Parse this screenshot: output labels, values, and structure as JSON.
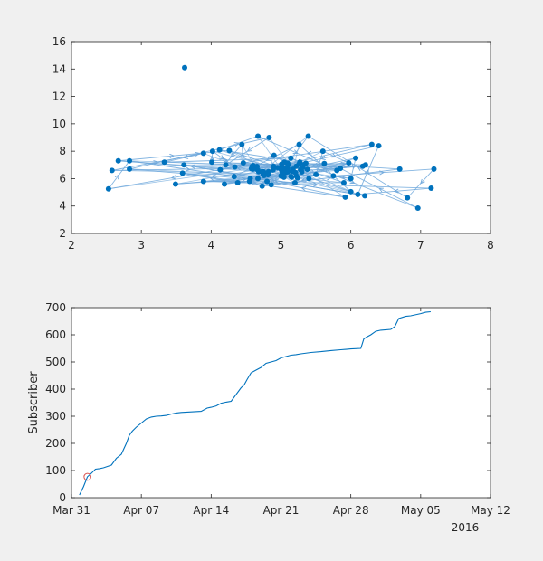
{
  "chart_data": [
    {
      "type": "scatter",
      "title": "",
      "xlabel": "",
      "ylabel": "",
      "xlim": [
        2,
        8
      ],
      "ylim": [
        2,
        16
      ],
      "xticks": [
        2,
        3,
        4,
        5,
        6,
        7,
        8
      ],
      "yticks": [
        2,
        4,
        6,
        8,
        10,
        12,
        14,
        16
      ],
      "grid": false,
      "marker_color": "#0072bd",
      "arrow_color": "#6fa8dc",
      "note": "Scatter of points with quiver arrows connecting consecutive points",
      "points": [
        [
          2.53,
          5.25
        ],
        [
          2.58,
          6.6
        ],
        [
          2.67,
          7.3
        ],
        [
          2.83,
          7.3
        ],
        [
          2.83,
          6.7
        ],
        [
          3.33,
          7.2
        ],
        [
          3.49,
          5.6
        ],
        [
          3.59,
          6.4
        ],
        [
          3.61,
          7.0
        ],
        [
          3.62,
          14.1
        ],
        [
          3.89,
          5.8
        ],
        [
          3.89,
          7.85
        ],
        [
          4.01,
          7.2
        ],
        [
          4.02,
          8.0
        ],
        [
          4.12,
          8.1
        ],
        [
          4.13,
          6.65
        ],
        [
          4.19,
          5.6
        ],
        [
          4.21,
          7.0
        ],
        [
          4.26,
          8.05
        ],
        [
          4.33,
          6.15
        ],
        [
          4.34,
          6.85
        ],
        [
          4.38,
          5.7
        ],
        [
          4.44,
          8.5
        ],
        [
          4.46,
          7.15
        ],
        [
          4.55,
          5.8
        ],
        [
          4.56,
          6.0
        ],
        [
          4.6,
          6.7
        ],
        [
          4.67,
          9.1
        ],
        [
          4.67,
          6.0
        ],
        [
          4.73,
          5.45
        ],
        [
          4.75,
          6.5
        ],
        [
          4.8,
          5.8
        ],
        [
          4.83,
          9.0
        ],
        [
          4.86,
          5.55
        ],
        [
          4.9,
          7.7
        ],
        [
          4.95,
          6.8
        ],
        [
          5.0,
          6.2
        ],
        [
          5.05,
          7.2
        ],
        [
          5.1,
          6.5
        ],
        [
          5.14,
          7.5
        ],
        [
          5.2,
          5.7
        ],
        [
          5.22,
          6.9
        ],
        [
          5.26,
          8.5
        ],
        [
          5.27,
          7.2
        ],
        [
          5.39,
          9.1
        ],
        [
          5.4,
          6.0
        ],
        [
          5.5,
          6.3
        ],
        [
          5.6,
          8.0
        ],
        [
          5.62,
          7.1
        ],
        [
          5.75,
          6.2
        ],
        [
          5.8,
          6.6
        ],
        [
          5.85,
          6.75
        ],
        [
          5.9,
          5.7
        ],
        [
          5.92,
          4.65
        ],
        [
          5.97,
          7.15
        ],
        [
          6.0,
          5.05
        ],
        [
          6.0,
          6.0
        ],
        [
          6.07,
          7.5
        ],
        [
          6.1,
          4.85
        ],
        [
          6.17,
          6.9
        ],
        [
          6.2,
          4.75
        ],
        [
          6.21,
          7.0
        ],
        [
          6.3,
          8.5
        ],
        [
          6.4,
          8.4
        ],
        [
          6.7,
          6.7
        ],
        [
          6.81,
          4.6
        ],
        [
          6.96,
          3.85
        ],
        [
          7.15,
          5.3
        ],
        [
          7.19,
          6.7
        ]
      ]
    },
    {
      "type": "line",
      "title": "",
      "xlabel": "",
      "ylabel": "Subscriber",
      "xlim": [
        "Mar 31",
        "May 12"
      ],
      "ylim": [
        0,
        700
      ],
      "xticks": [
        "Mar 31",
        "Apr 07",
        "Apr 14",
        "Apr 21",
        "Apr 28",
        "May 05",
        "May 12"
      ],
      "yticks": [
        0,
        100,
        200,
        300,
        400,
        500,
        600,
        700
      ],
      "x_secondary_label": "2016",
      "grid": false,
      "line_color": "#0072bd",
      "marker": {
        "date_offset_days": 1.6,
        "value": 77,
        "color": "#d9534f",
        "shape": "circle"
      },
      "x_days_from_mar31": [
        0.8,
        1.2,
        1.6,
        2.0,
        2.4,
        2.8,
        3.2,
        3.6,
        4.0,
        4.5,
        5.0,
        5.5,
        5.8,
        6.1,
        6.5,
        7.0,
        7.5,
        8.0,
        8.5,
        9.0,
        9.5,
        10.0,
        10.5,
        11.0,
        12.0,
        13.0,
        13.6,
        14.0,
        14.5,
        15.0,
        15.5,
        16.0,
        17.0,
        17.3,
        17.6,
        18.0,
        18.5,
        19.0,
        19.5,
        20.0,
        20.5,
        21.0,
        21.5,
        22.0,
        22.5,
        23.0,
        24.0,
        25.0,
        26.0,
        27.0,
        28.0,
        29.0,
        29.3,
        29.6,
        30.0,
        30.5,
        31.0,
        32.0,
        32.4,
        32.8,
        33.5,
        34.0,
        35.0,
        35.5,
        36.0
      ],
      "values": [
        10,
        40,
        77,
        90,
        105,
        107,
        110,
        115,
        120,
        145,
        160,
        200,
        230,
        245,
        260,
        275,
        290,
        297,
        300,
        301,
        303,
        308,
        312,
        314,
        316,
        318,
        330,
        333,
        338,
        348,
        352,
        355,
        405,
        415,
        435,
        460,
        470,
        480,
        495,
        500,
        505,
        515,
        520,
        525,
        527,
        530,
        535,
        538,
        542,
        545,
        548,
        550,
        585,
        592,
        600,
        613,
        617,
        620,
        630,
        660,
        668,
        670,
        678,
        683,
        685
      ]
    }
  ]
}
